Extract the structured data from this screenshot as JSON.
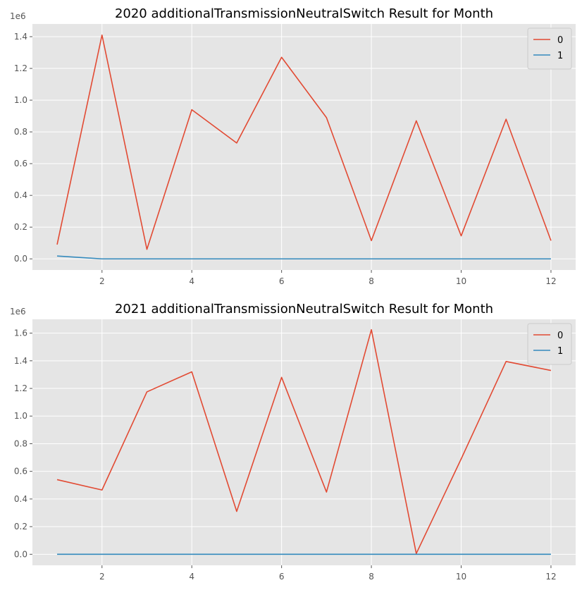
{
  "chart_data": [
    {
      "type": "line",
      "title": "2020 additionalTransmissionNeutralSwitch Result for Month",
      "xlabel": "",
      "ylabel": "",
      "y_offset_label": "1e6",
      "x": [
        1,
        2,
        3,
        4,
        5,
        6,
        7,
        8,
        9,
        10,
        11,
        12
      ],
      "x_ticks": [
        2,
        4,
        6,
        8,
        10,
        12
      ],
      "y_ticks": [
        0.0,
        0.2,
        0.4,
        0.6,
        0.8,
        1.0,
        1.2,
        1.4
      ],
      "y_tick_labels": [
        "0.0",
        "0.2",
        "0.4",
        "0.6",
        "0.8",
        "1.0",
        "1.2",
        "1.4"
      ],
      "xlim": [
        0.45,
        12.55
      ],
      "ylim": [
        -0.07,
        1.48
      ],
      "grid": true,
      "legend_position": "top-right",
      "series": [
        {
          "name": "0",
          "color": "#E24A33",
          "values": [
            0.09,
            1.41,
            0.06,
            0.94,
            0.73,
            1.27,
            0.89,
            0.115,
            0.87,
            0.145,
            0.88,
            0.115
          ]
        },
        {
          "name": "1",
          "color": "#348ABD",
          "values": [
            0.018,
            0.0,
            0.0,
            0.0,
            0.0,
            0.0,
            0.0,
            0.0,
            0.0,
            0.0,
            0.0,
            0.0
          ]
        }
      ]
    },
    {
      "type": "line",
      "title": "2021 additionalTransmissionNeutralSwitch Result for Month",
      "xlabel": "",
      "ylabel": "",
      "y_offset_label": "1e6",
      "x": [
        1,
        2,
        3,
        4,
        5,
        6,
        7,
        8,
        9,
        10,
        11,
        12
      ],
      "x_ticks": [
        2,
        4,
        6,
        8,
        10,
        12
      ],
      "y_ticks": [
        0.0,
        0.2,
        0.4,
        0.6,
        0.8,
        1.0,
        1.2,
        1.4,
        1.6
      ],
      "y_tick_labels": [
        "0.0",
        "0.2",
        "0.4",
        "0.6",
        "0.8",
        "1.0",
        "1.2",
        "1.4",
        "1.6"
      ],
      "xlim": [
        0.45,
        12.55
      ],
      "ylim": [
        -0.08,
        1.7
      ],
      "grid": true,
      "legend_position": "top-right",
      "series": [
        {
          "name": "0",
          "color": "#E24A33",
          "values": [
            0.54,
            0.465,
            1.175,
            1.32,
            0.31,
            1.28,
            0.45,
            1.625,
            0.005,
            0.69,
            1.395,
            1.33
          ]
        },
        {
          "name": "1",
          "color": "#348ABD",
          "values": [
            0.0,
            0.0,
            0.0,
            0.0,
            0.0,
            0.0,
            0.0,
            0.0,
            0.0,
            0.0,
            0.0,
            0.0
          ]
        }
      ]
    }
  ]
}
